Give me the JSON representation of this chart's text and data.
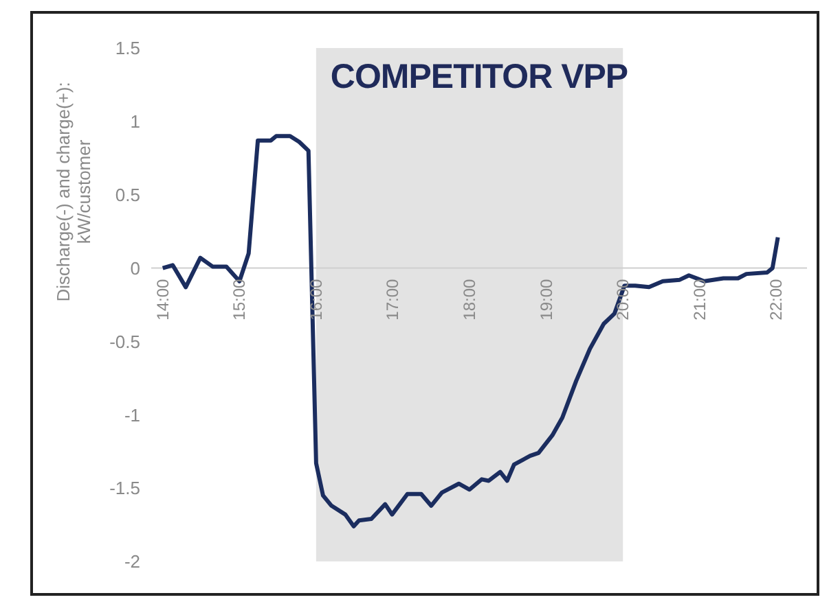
{
  "chart_data": {
    "type": "line",
    "title": "COMPETITOR VPP",
    "ylabel": "Discharge(-) and charge(+):\nkW/customer",
    "x": [
      14.0,
      14.13,
      14.3,
      14.49,
      14.65,
      14.83,
      15.0,
      15.12,
      15.24,
      15.41,
      15.48,
      15.66,
      15.78,
      15.9,
      16.0,
      16.09,
      16.2,
      16.38,
      16.49,
      16.56,
      16.72,
      16.9,
      16.99,
      17.19,
      17.37,
      17.5,
      17.64,
      17.86,
      18.0,
      18.16,
      18.25,
      18.4,
      18.49,
      18.58,
      18.79,
      18.9,
      19.08,
      19.21,
      19.39,
      19.57,
      19.75,
      19.89,
      20.02,
      20.16,
      20.34,
      20.52,
      20.74,
      20.86,
      21.06,
      21.31,
      21.5,
      21.61,
      21.88,
      21.95,
      22.02
    ],
    "series": [
      {
        "color": "#1b2d5f",
        "values": [
          0.0,
          0.02,
          -0.13,
          0.07,
          0.01,
          0.01,
          -0.09,
          0.1,
          0.87,
          0.87,
          0.9,
          0.9,
          0.86,
          0.8,
          -1.33,
          -1.55,
          -1.62,
          -1.68,
          -1.76,
          -1.72,
          -1.71,
          -1.61,
          -1.68,
          -1.54,
          -1.54,
          -1.62,
          -1.53,
          -1.47,
          -1.51,
          -1.44,
          -1.45,
          -1.39,
          -1.45,
          -1.34,
          -1.28,
          -1.26,
          -1.14,
          -1.02,
          -0.77,
          -0.55,
          -0.38,
          -0.31,
          -0.12,
          -0.12,
          -0.13,
          -0.09,
          -0.08,
          -0.05,
          -0.09,
          -0.07,
          -0.07,
          -0.04,
          -0.03,
          0.0,
          0.21
        ]
      }
    ],
    "xlim": [
      13.85,
      22.4
    ],
    "xticks": [
      {
        "value": 14,
        "label": "14:00"
      },
      {
        "value": 15,
        "label": "15:00"
      },
      {
        "value": 16,
        "label": "16:00"
      },
      {
        "value": 17,
        "label": "17:00"
      },
      {
        "value": 18,
        "label": "18:00"
      },
      {
        "value": 19,
        "label": "19:00"
      },
      {
        "value": 20,
        "label": "20:00"
      },
      {
        "value": 21,
        "label": "21:00"
      },
      {
        "value": 22,
        "label": "22:00"
      }
    ],
    "ylim": [
      -2,
      1.5
    ],
    "yticks": [
      -2,
      -1.5,
      -1,
      -0.5,
      0,
      0.5,
      1,
      1.5
    ],
    "bands": [
      {
        "axis": "x",
        "from": 16,
        "to": 20,
        "color": "#e3e3e3"
      }
    ],
    "grid": false,
    "legend": false,
    "marker": "none",
    "line_style": "solid"
  }
}
